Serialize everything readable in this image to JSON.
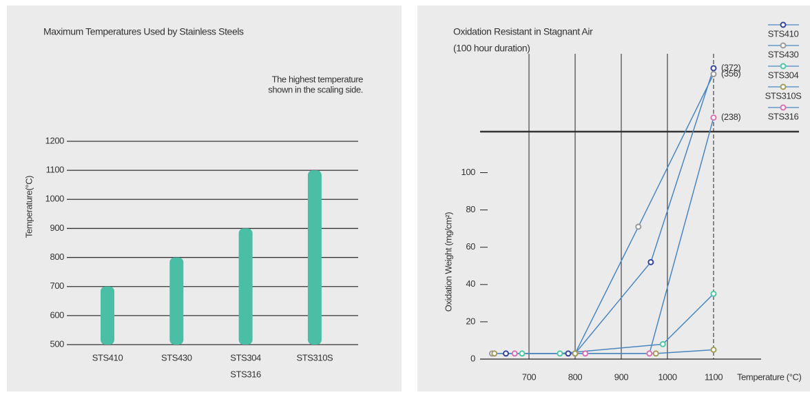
{
  "chart_data": [
    {
      "type": "bar",
      "title": "Maximum Temperatures Used by Stainless Steels",
      "annotation": [
        "The highest temperature",
        "shown in the scaling side."
      ],
      "y_label": "Temperature(°C)",
      "categories": [
        "STS410",
        "STS430",
        [
          "STS304",
          "STS316"
        ],
        "STS310S"
      ],
      "values": [
        700,
        800,
        900,
        1100
      ],
      "color": "#4bbfa6",
      "ylim": [
        500,
        1200
      ],
      "yticks": [
        500,
        600,
        700,
        800,
        900,
        1000,
        1100,
        1200
      ],
      "grid": true
    },
    {
      "type": "line",
      "title": "Oxidation Resistant in Stagnant Air",
      "subtitle": "(100 hour duration)",
      "y_label": "Oxidation Weight (mg/cm²)",
      "x_label": "Temperature (°C)",
      "xlim": [
        594,
        1203
      ],
      "xticks": [
        700,
        800,
        900,
        1000,
        1100
      ],
      "ylim": [
        0,
        400
      ],
      "y_break": [
        122,
        200
      ],
      "yticks": [
        0,
        20,
        40,
        60,
        80,
        100
      ],
      "legend": "top-right",
      "series": [
        {
          "name": "STS410",
          "color": "#33449a",
          "x": [
            650,
            785,
            800,
            964,
            1100
          ],
          "values": [
            3,
            3,
            3,
            52,
            372
          ],
          "value_labels": [
            null,
            null,
            null,
            null,
            "(372)"
          ]
        },
        {
          "name": "STS430",
          "color": "#9a9a9a",
          "x": [
            620,
            800,
            937,
            1100
          ],
          "values": [
            3,
            3,
            71,
            356
          ],
          "value_labels": [
            null,
            null,
            null,
            "(356)"
          ]
        },
        {
          "name": "STS304",
          "color": "#4cc7a5",
          "x": [
            685,
            767,
            990,
            1100
          ],
          "values": [
            3,
            3,
            8,
            35
          ]
        },
        {
          "name": "STS310S",
          "color": "#a39b5a",
          "x": [
            625,
            800,
            975,
            1100
          ],
          "values": [
            3,
            3,
            3,
            5
          ]
        },
        {
          "name": "STS316",
          "color": "#d96fb5",
          "x": [
            669,
            822,
            961,
            1100
          ],
          "values": [
            3,
            3,
            3,
            238
          ],
          "value_labels": [
            null,
            null,
            null,
            "(238)"
          ]
        }
      ]
    }
  ]
}
